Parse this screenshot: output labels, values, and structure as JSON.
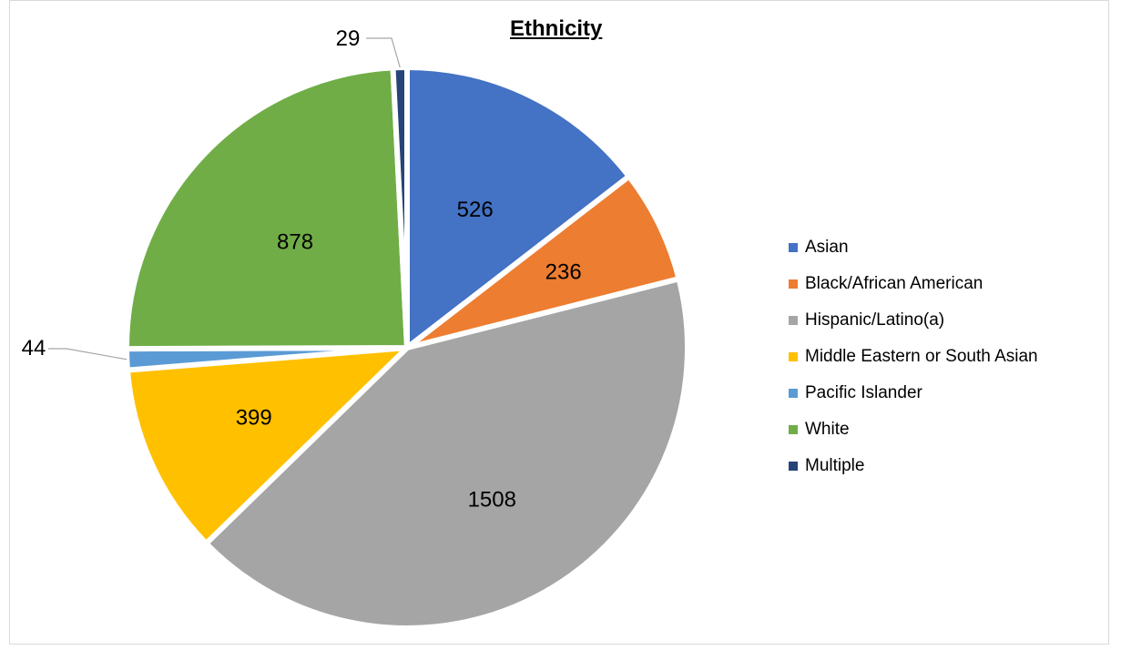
{
  "chart_data": {
    "type": "pie",
    "title": "Ethnicity",
    "categories": [
      "Asian",
      "Black/African American",
      "Hispanic/Latino(a)",
      "Middle Eastern or South Asian",
      "Pacific Islander",
      "White",
      "Multiple"
    ],
    "values": [
      526,
      236,
      1508,
      399,
      44,
      878,
      29
    ],
    "colors": [
      "#4472C4",
      "#ED7D31",
      "#A5A5A5",
      "#FFC000",
      "#5B9BD5",
      "#70AD47",
      "#264478"
    ],
    "data_labels": [
      "526",
      "236",
      "1508",
      "399",
      "44",
      "878",
      "29"
    ],
    "legend_position": "right"
  }
}
